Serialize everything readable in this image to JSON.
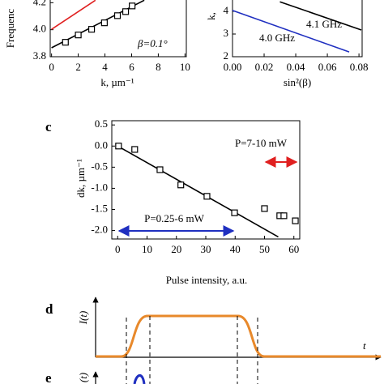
{
  "chart_data": [
    {
      "type": "line",
      "ylabel": "Frequenc",
      "xlabel": "k, µm⁻¹",
      "annotation": "β=0.1°",
      "xlim": [
        -0.1,
        10.1
      ],
      "ylim": [
        3.8,
        4.22
      ],
      "xticks": [
        0,
        2,
        4,
        6,
        8,
        10
      ],
      "yticks": [
        3.8,
        {
          "value": 4.0,
          "label": "4.0"
        },
        4.2
      ],
      "series": [
        {
          "color": "#e02020",
          "marker": "none",
          "x": [
            0,
            3.29
          ],
          "values": [
            4.003,
            4.218
          ]
        },
        {
          "color": "#000000",
          "marker": "none",
          "x": [
            0,
            6.95
          ],
          "values": [
            3.866,
            4.218
          ]
        },
        {
          "color": "#000000",
          "marker": "square",
          "x": [
            1.04,
            2.0,
            3.0,
            3.96,
            4.94,
            5.55,
            6.04
          ],
          "values": [
            3.907,
            3.961,
            4.003,
            4.051,
            4.104,
            4.134,
            4.176
          ]
        }
      ]
    },
    {
      "type": "line",
      "ylabel": "k,",
      "xlabel": "sin²(β)",
      "xlim": [
        0,
        0.082
      ],
      "ylim": [
        2,
        4.5
      ],
      "xticks": [
        {
          "value": 0,
          "label": "0.00"
        },
        0.02,
        0.04,
        0.06,
        0.08
      ],
      "yticks": [
        2,
        3,
        4
      ],
      "series": [
        {
          "name": "4.1 GHz",
          "color": "#000000",
          "marker": "none",
          "x": [
            0.03,
            0.0815
          ],
          "values": [
            4.42,
            3.18
          ]
        },
        {
          "name": "4.0 GHz",
          "color": "#1f2fc0",
          "marker": "none",
          "x": [
            0,
            0.0738
          ],
          "values": [
            4.04,
            2.21
          ]
        }
      ]
    },
    {
      "type": "line",
      "panel": "c",
      "ylabel": "dk, µm⁻¹",
      "xlabel": "Pulse intensity, a.u.",
      "annotations": [
        {
          "text": "P=7-10 mW",
          "color": "#e02020"
        },
        {
          "text": "P=0.25-6 mW",
          "color": "#1f2fc0"
        }
      ],
      "xlim": [
        -2,
        62
      ],
      "ylim": [
        -2.2,
        0.6
      ],
      "xticks": [
        0,
        10,
        20,
        30,
        40,
        50,
        60
      ],
      "yticks": [
        0.5,
        {
          "value": 0,
          "label": "0.0"
        },
        -0.5,
        {
          "value": -1,
          "label": "-1.0"
        },
        -1.5,
        {
          "value": -2,
          "label": "-2.0"
        }
      ],
      "series": [
        {
          "color": "#000000",
          "marker": "none",
          "x": [
            0,
            54.7
          ],
          "values": [
            0,
            -2.15
          ]
        },
        {
          "color": "#000000",
          "marker": "square",
          "x": [
            0.3,
            5.8,
            14.4,
            21.5,
            30.4,
            39.8,
            50,
            55.2,
            56.6,
            60.5
          ],
          "values": [
            0,
            -0.08,
            -0.56,
            -0.92,
            -1.19,
            -1.58,
            -1.48,
            -1.65,
            -1.65,
            -1.77
          ]
        }
      ]
    }
  ],
  "diagram": {
    "d_label": "d",
    "d_ylabel": "I(t)",
    "d_xlabel": "t",
    "e_label": "e",
    "e_ylabel": "(t)"
  }
}
